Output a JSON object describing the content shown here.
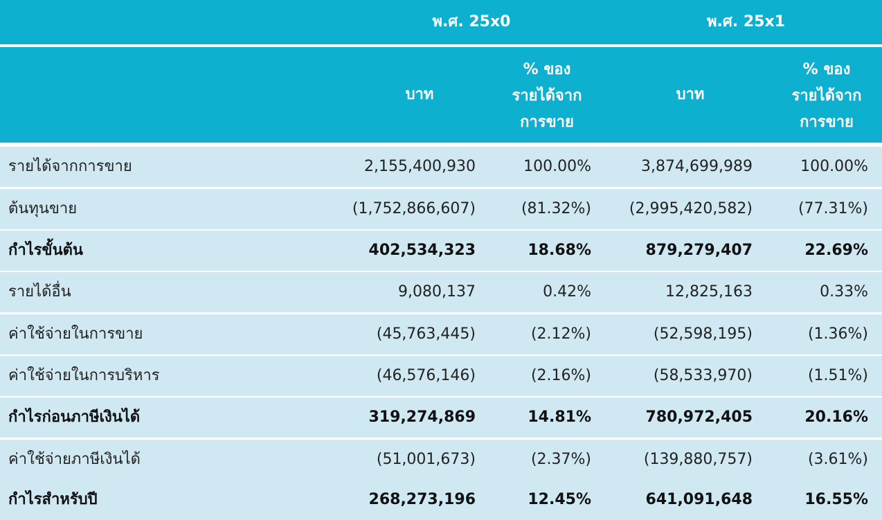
{
  "header": {
    "year1": "พ.ศ. 25x0",
    "year2": "พ.ศ. 25x1",
    "baht": "บาท",
    "pct_line1": "% ของ",
    "pct_line2": "รายได้จาก",
    "pct_line3": "การขาย"
  },
  "rows": [
    {
      "label": "รายได้จากการขาย",
      "v1": "2,155,400,930",
      "p1": "100.00%",
      "v2": "3,874,699,989",
      "p2": "100.00%"
    },
    {
      "label": "ต้นทุนขาย",
      "v1": "(1,752,866,607)",
      "p1": "(81.32%)",
      "v2": "(2,995,420,582)",
      "p2": "(77.31%)"
    },
    {
      "label": "กำไรขั้นต้น",
      "v1": "402,534,323",
      "p1": "18.68%",
      "v2": "879,279,407",
      "p2": "22.69%"
    },
    {
      "label": "รายได้อื่น",
      "v1": "9,080,137",
      "p1": "0.42%",
      "v2": "12,825,163",
      "p2": "0.33%"
    },
    {
      "label": "ค่าใช้จ่ายในการขาย",
      "v1": "(45,763,445)",
      "p1": "(2.12%)",
      "v2": "(52,598,195)",
      "p2": "(1.36%)"
    },
    {
      "label": "ค่าใช้จ่ายในการบริหาร",
      "v1": "(46,576,146)",
      "p1": "(2.16%)",
      "v2": "(58,533,970)",
      "p2": "(1.51%)"
    },
    {
      "label": "กำไรก่อนภาษีเงินได้",
      "v1": "319,274,869",
      "p1": "14.81%",
      "v2": "780,972,405",
      "p2": "20.16%"
    },
    {
      "label": "ค่าใช้จ่ายภาษีเงินได้",
      "v1": "(51,001,673)",
      "p1": "(2.37%)",
      "v2": "(139,880,757)",
      "p2": "(3.61%)"
    },
    {
      "label": "กำไรสำหรับปี",
      "v1": "268,273,196",
      "p1": "12.45%",
      "v2": "641,091,648",
      "p2": "16.55%"
    }
  ]
}
